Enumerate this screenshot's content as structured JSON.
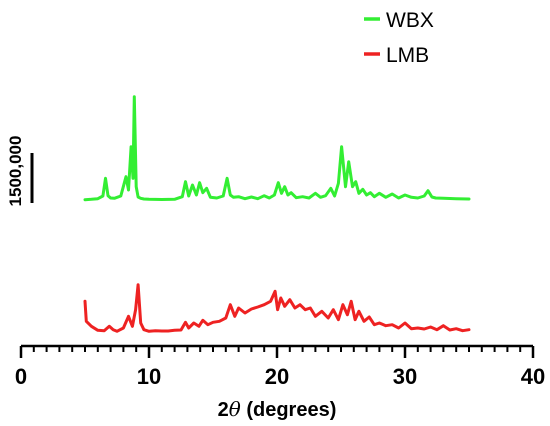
{
  "chart_data": {
    "type": "line",
    "xlim": [
      0,
      40
    ],
    "x_ticks": [
      0,
      10,
      20,
      30,
      40
    ],
    "x_tick_labels": [
      "0",
      "10",
      "20",
      "30",
      "40"
    ],
    "x_minor_step": 1,
    "xlabel": "2θ (degrees)",
    "xlabel_parts": {
      "prefix": "2",
      "symbol": "θ",
      "suffix": " (degrees)"
    },
    "y_ticks_shown": false,
    "legend_position": "top-right",
    "scale_bar": {
      "label": "1500,000",
      "value": 1500000
    },
    "series": [
      {
        "name": "WBX",
        "color": "#33ee33",
        "x": [
          5.0,
          5.5,
          6.0,
          6.4,
          6.6,
          6.8,
          7.0,
          7.3,
          7.8,
          8.2,
          8.4,
          8.6,
          8.75,
          8.85,
          9.0,
          9.15,
          9.35,
          9.6,
          10.0,
          11.0,
          12.0,
          12.6,
          12.85,
          13.1,
          13.4,
          13.7,
          13.95,
          14.2,
          14.5,
          14.8,
          15.3,
          15.8,
          16.1,
          16.35,
          16.6,
          17.0,
          17.5,
          18.0,
          18.5,
          19.0,
          19.4,
          19.8,
          20.1,
          20.35,
          20.6,
          20.85,
          21.1,
          21.5,
          22.0,
          22.5,
          23.0,
          23.4,
          23.8,
          24.2,
          24.5,
          24.8,
          25.05,
          25.35,
          25.6,
          25.9,
          26.15,
          26.4,
          26.7,
          27.0,
          27.3,
          27.6,
          28.0,
          28.5,
          29.0,
          29.5,
          30.0,
          30.5,
          31.0,
          31.5,
          31.8,
          32.1,
          32.4,
          33.0,
          34.0,
          35.0
        ],
        "y": [
          10000,
          20000,
          40000,
          120000,
          650000,
          130000,
          60000,
          50000,
          120000,
          700000,
          300000,
          1600000,
          650000,
          3100000,
          400000,
          90000,
          50000,
          30000,
          20000,
          15000,
          20000,
          100000,
          550000,
          120000,
          450000,
          150000,
          520000,
          220000,
          350000,
          80000,
          60000,
          120000,
          650000,
          150000,
          80000,
          100000,
          40000,
          90000,
          40000,
          130000,
          60000,
          150000,
          520000,
          200000,
          400000,
          150000,
          220000,
          70000,
          100000,
          60000,
          200000,
          80000,
          130000,
          350000,
          120000,
          500000,
          1600000,
          400000,
          1150000,
          400000,
          550000,
          200000,
          320000,
          150000,
          220000,
          100000,
          200000,
          80000,
          180000,
          60000,
          150000,
          80000,
          60000,
          120000,
          280000,
          90000,
          60000,
          50000,
          40000,
          30000
        ]
      },
      {
        "name": "LMB",
        "color": "#ee2222",
        "x": [
          5.0,
          5.1,
          5.5,
          6.0,
          6.5,
          6.9,
          7.2,
          7.5,
          8.0,
          8.4,
          8.7,
          8.95,
          9.15,
          9.35,
          9.6,
          10.0,
          10.5,
          11.0,
          11.5,
          12.0,
          12.5,
          12.85,
          13.1,
          13.5,
          13.9,
          14.2,
          14.6,
          15.0,
          15.5,
          16.0,
          16.35,
          16.7,
          17.0,
          17.5,
          18.0,
          18.5,
          19.0,
          19.5,
          19.85,
          20.05,
          20.3,
          20.6,
          21.0,
          21.4,
          21.8,
          22.2,
          22.6,
          23.0,
          23.5,
          24.0,
          24.4,
          24.8,
          25.15,
          25.5,
          25.8,
          26.1,
          26.4,
          26.8,
          27.2,
          27.6,
          28.0,
          28.5,
          29.0,
          29.5,
          30.0,
          30.5,
          31.0,
          31.5,
          32.0,
          32.5,
          33.0,
          33.5,
          34.0,
          34.5,
          35.0
        ],
        "y": [
          950000,
          350000,
          200000,
          80000,
          70000,
          200000,
          100000,
          50000,
          150000,
          500000,
          200000,
          700000,
          1450000,
          300000,
          100000,
          50000,
          70000,
          60000,
          60000,
          80000,
          90000,
          320000,
          150000,
          300000,
          200000,
          380000,
          250000,
          320000,
          350000,
          450000,
          850000,
          500000,
          750000,
          600000,
          720000,
          780000,
          850000,
          950000,
          1250000,
          700000,
          1050000,
          800000,
          1000000,
          750000,
          850000,
          700000,
          750000,
          500000,
          650000,
          450000,
          700000,
          400000,
          850000,
          550000,
          950000,
          400000,
          650000,
          350000,
          480000,
          250000,
          300000,
          220000,
          250000,
          150000,
          300000,
          130000,
          150000,
          120000,
          180000,
          100000,
          220000,
          90000,
          130000,
          70000,
          100000
        ]
      }
    ]
  }
}
